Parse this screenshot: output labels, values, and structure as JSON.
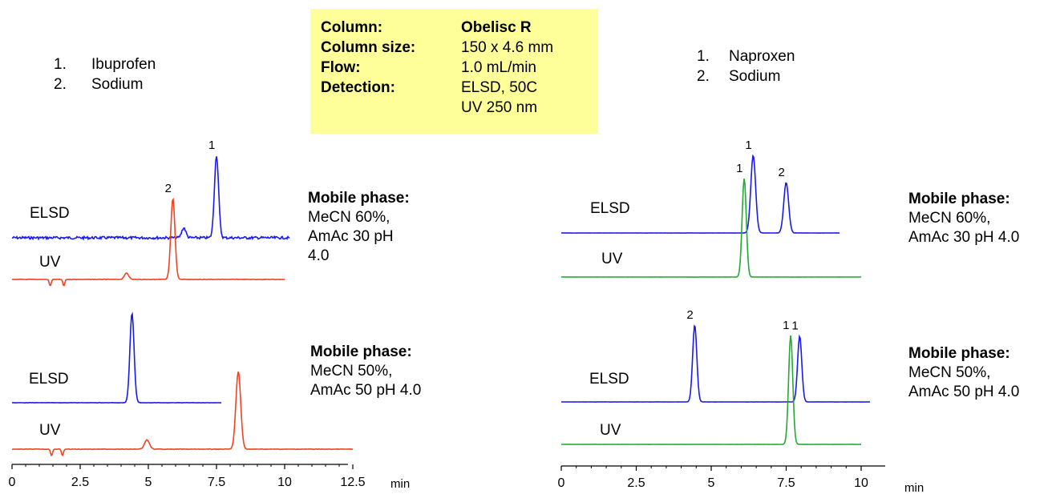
{
  "info_box": {
    "rows": [
      {
        "label": "Column:",
        "value": "Obelisc R"
      },
      {
        "label": "Column size:",
        "value": "150 x 4.6 mm"
      },
      {
        "label": "Flow:",
        "value": "1.0 mL/min"
      },
      {
        "label": "Detection:",
        "value": "ELSD, 50C"
      },
      {
        "label": "",
        "value": "UV 250 nm"
      }
    ]
  },
  "left_legend": [
    {
      "num": "1.",
      "name": "Ibuprofen"
    },
    {
      "num": "2.",
      "name": "Sodium"
    }
  ],
  "right_legend": [
    {
      "num": "1.",
      "name": "Naproxen"
    },
    {
      "num": "2.",
      "name": "Sodium"
    }
  ],
  "mobile_phase": {
    "left_top": {
      "heading": "Mobile phase:",
      "line1": "MeCN  60%,",
      "line2": "AmAc  30 pH",
      "line3": "4.0"
    },
    "left_bottom": {
      "heading": "Mobile phase:",
      "line1": "MeCN  50%,",
      "line2": "AmAc  50 pH 4.0"
    },
    "right_top": {
      "heading": "Mobile phase:",
      "line1": "MeCN  60%,",
      "line2": "AmAc  30 pH 4.0"
    },
    "right_bottom": {
      "heading": "Mobile phase:",
      "line1": "MeCN  50%,",
      "line2": "AmAc  50 pH 4.0"
    }
  },
  "trace_labels": {
    "elsd": "ELSD",
    "uv": "UV"
  },
  "colors": {
    "elsd": "#1a1aee",
    "uv_left": "#ee4422",
    "uv_right": "#22aa33",
    "info_box": "#ffff99"
  },
  "chart_data": [
    {
      "type": "line",
      "panel": "left",
      "xlabel": "min",
      "xlim": [
        0,
        12.5
      ],
      "xticks": [
        "0",
        "2.5",
        "5",
        "7.5",
        "10",
        "12.5"
      ],
      "series": [
        {
          "name": "ELSD",
          "condition": "MeCN 60%",
          "peaks": [
            {
              "x": 6.3,
              "height": 0.12
            },
            {
              "x": 7.5,
              "height": 1.0,
              "label": "1"
            }
          ],
          "x_range": [
            0,
            10.2
          ]
        },
        {
          "name": "UV",
          "condition": "MeCN 60%",
          "peaks": [
            {
              "x": 4.2,
              "height": 0.08
            },
            {
              "x": 5.9,
              "height": 1.0,
              "label": "2"
            }
          ],
          "dips": [
            1.4,
            1.9
          ],
          "x_range": [
            0,
            10.0
          ]
        },
        {
          "name": "ELSD",
          "condition": "MeCN 50%",
          "peaks": [
            {
              "x": 4.4,
              "height": 1.0
            }
          ],
          "x_range": [
            0,
            7.7
          ]
        },
        {
          "name": "UV",
          "condition": "MeCN 50%",
          "peaks": [
            {
              "x": 4.95,
              "height": 0.12
            },
            {
              "x": 8.3,
              "height": 1.0
            }
          ],
          "dips": [
            1.45,
            1.85
          ],
          "x_range": [
            0,
            12.5
          ]
        }
      ]
    },
    {
      "type": "line",
      "panel": "right",
      "xlabel": "min",
      "xlim": [
        0,
        10
      ],
      "xticks": [
        "0",
        "2.5",
        "5",
        "7.5",
        "10"
      ],
      "series": [
        {
          "name": "ELSD",
          "condition": "MeCN 60%",
          "peaks": [
            {
              "x": 6.4,
              "height": 1.0,
              "label": "1"
            },
            {
              "x": 7.5,
              "height": 0.65,
              "label": "2"
            }
          ],
          "x_range": [
            0,
            9.3
          ]
        },
        {
          "name": "UV",
          "condition": "MeCN 60%",
          "peaks": [
            {
              "x": 6.1,
              "height": 1.0,
              "label": "1"
            }
          ],
          "x_range": [
            0,
            10.0
          ]
        },
        {
          "name": "ELSD",
          "condition": "MeCN 50%",
          "peaks": [
            {
              "x": 4.45,
              "height": 0.98,
              "label": "2"
            },
            {
              "x": 7.95,
              "height": 0.84,
              "label": "1"
            }
          ],
          "x_range": [
            0,
            10.3
          ]
        },
        {
          "name": "UV",
          "condition": "MeCN 50%",
          "peaks": [
            {
              "x": 7.65,
              "height": 1.0,
              "label": "1"
            }
          ],
          "x_range": [
            0,
            10.0
          ]
        }
      ]
    }
  ]
}
